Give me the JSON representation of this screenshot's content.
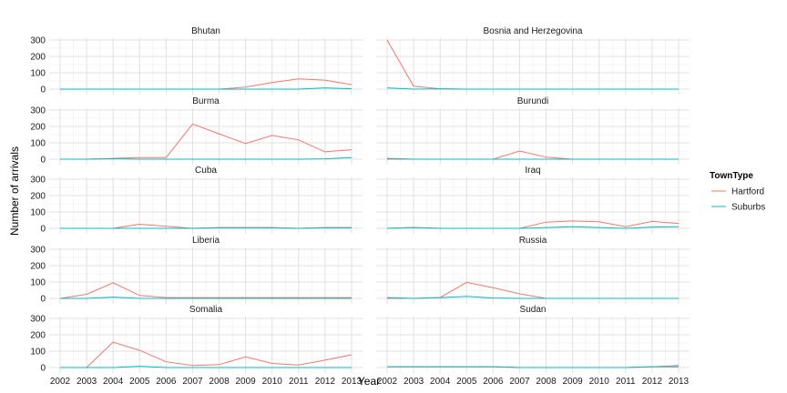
{
  "chart_data": {
    "type": "line",
    "xlabel": "Year",
    "ylabel": "Number of arrivals",
    "x": [
      2002,
      2003,
      2004,
      2005,
      2006,
      2007,
      2008,
      2009,
      2010,
      2011,
      2012,
      2013
    ],
    "ylim": [
      0,
      300
    ],
    "yticks": [
      0,
      100,
      200,
      300
    ],
    "grid": true,
    "legend": {
      "title": "TownType",
      "position": "right",
      "entries": [
        {
          "name": "Hartford",
          "color": "#F8766D"
        },
        {
          "name": "Suburbs",
          "color": "#00BFC4"
        }
      ]
    },
    "panels": [
      {
        "title": "Bhutan",
        "series": [
          {
            "name": "Hartford",
            "values": [
              0,
              0,
              0,
              0,
              0,
              0,
              0,
              12,
              40,
              62,
              55,
              28
            ]
          },
          {
            "name": "Suburbs",
            "values": [
              0,
              0,
              0,
              0,
              0,
              0,
              0,
              0,
              0,
              0,
              8,
              2
            ]
          }
        ]
      },
      {
        "title": "Bosnia and Herzegovina",
        "series": [
          {
            "name": "Hartford",
            "values": [
              300,
              18,
              2,
              0,
              0,
              0,
              0,
              0,
              0,
              0,
              0,
              0
            ]
          },
          {
            "name": "Suburbs",
            "values": [
              8,
              0,
              2,
              0,
              0,
              0,
              0,
              0,
              0,
              0,
              0,
              0
            ]
          }
        ]
      },
      {
        "title": "Burma",
        "series": [
          {
            "name": "Hartford",
            "values": [
              0,
              0,
              5,
              10,
              10,
              215,
              155,
              95,
              145,
              118,
              45,
              58
            ]
          },
          {
            "name": "Suburbs",
            "values": [
              0,
              0,
              3,
              0,
              0,
              0,
              0,
              0,
              0,
              0,
              2,
              10
            ]
          }
        ]
      },
      {
        "title": "Burundi",
        "series": [
          {
            "name": "Hartford",
            "values": [
              0,
              0,
              0,
              0,
              0,
              50,
              12,
              0,
              0,
              0,
              0,
              0
            ]
          },
          {
            "name": "Suburbs",
            "values": [
              5,
              0,
              0,
              0,
              0,
              0,
              0,
              0,
              0,
              0,
              0,
              0
            ]
          }
        ]
      },
      {
        "title": "Cuba",
        "series": [
          {
            "name": "Hartford",
            "values": [
              0,
              0,
              0,
              25,
              12,
              0,
              5,
              5,
              5,
              0,
              5,
              5
            ]
          },
          {
            "name": "Suburbs",
            "values": [
              0,
              0,
              0,
              0,
              0,
              0,
              3,
              3,
              3,
              0,
              3,
              3
            ]
          }
        ]
      },
      {
        "title": "Iraq",
        "series": [
          {
            "name": "Hartford",
            "values": [
              0,
              5,
              0,
              0,
              0,
              0,
              38,
              45,
              40,
              10,
              42,
              30
            ]
          },
          {
            "name": "Suburbs",
            "values": [
              0,
              5,
              0,
              0,
              0,
              0,
              5,
              10,
              5,
              0,
              8,
              10
            ]
          }
        ]
      },
      {
        "title": "Liberia",
        "series": [
          {
            "name": "Hartford",
            "values": [
              0,
              25,
              95,
              18,
              5,
              5,
              5,
              5,
              5,
              5,
              5,
              5
            ]
          },
          {
            "name": "Suburbs",
            "values": [
              0,
              0,
              8,
              0,
              0,
              0,
              0,
              0,
              0,
              0,
              0,
              0
            ]
          }
        ]
      },
      {
        "title": "Russia",
        "series": [
          {
            "name": "Hartford",
            "values": [
              0,
              0,
              5,
              98,
              65,
              28,
              0,
              0,
              0,
              0,
              0,
              0
            ]
          },
          {
            "name": "Suburbs",
            "values": [
              5,
              0,
              5,
              12,
              2,
              0,
              0,
              0,
              0,
              0,
              0,
              0
            ]
          }
        ]
      },
      {
        "title": "Somalia",
        "series": [
          {
            "name": "Hartford",
            "values": [
              0,
              0,
              155,
              105,
              35,
              12,
              18,
              65,
              25,
              15,
              45,
              78
            ]
          },
          {
            "name": "Suburbs",
            "values": [
              0,
              0,
              0,
              8,
              0,
              0,
              0,
              0,
              0,
              0,
              0,
              0
            ]
          }
        ]
      },
      {
        "title": "Sudan",
        "series": [
          {
            "name": "Hartford",
            "values": [
              5,
              5,
              5,
              5,
              5,
              0,
              0,
              0,
              0,
              0,
              5,
              12
            ]
          },
          {
            "name": "Suburbs",
            "values": [
              5,
              5,
              5,
              5,
              5,
              0,
              0,
              0,
              0,
              0,
              5,
              5
            ]
          }
        ]
      }
    ]
  }
}
